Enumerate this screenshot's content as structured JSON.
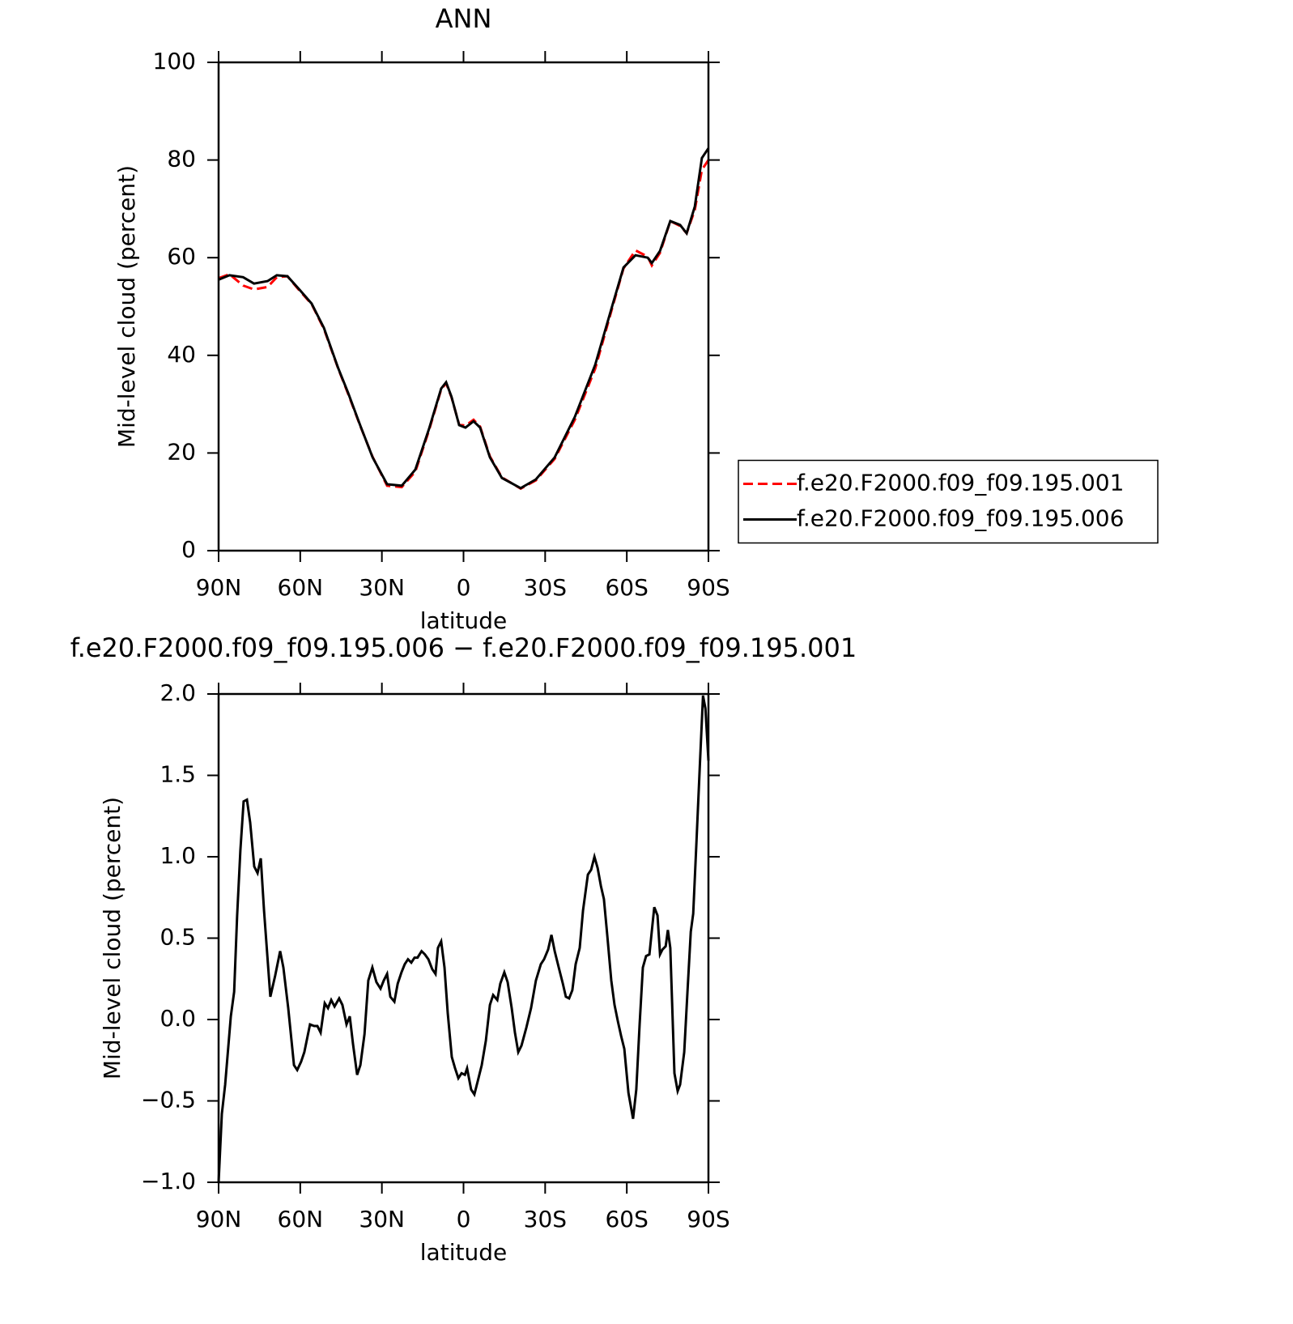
{
  "chart_data": [
    {
      "type": "line",
      "title": "ANN",
      "xlabel": "latitude",
      "ylabel": "Mid-level cloud (percent)",
      "xlim": [
        90,
        -90
      ],
      "ylim": [
        0,
        100
      ],
      "xticks": [
        {
          "value": 90,
          "label": "90N"
        },
        {
          "value": 60,
          "label": "60N"
        },
        {
          "value": 30,
          "label": "30N"
        },
        0,
        {
          "value": -30,
          "label": "30S"
        },
        {
          "value": -60,
          "label": "60S"
        },
        {
          "value": -90,
          "label": "90S"
        }
      ],
      "yticks": [
        0,
        20,
        40,
        60,
        80,
        100
      ],
      "legend": "right",
      "x": [
        90,
        86,
        81,
        77,
        72,
        68.6,
        64.7,
        60.2,
        55.8,
        51.3,
        46,
        42.4,
        38,
        33.4,
        28.1,
        22.7,
        17.7,
        12.7,
        8.2,
        6.4,
        4.4,
        1.6,
        -0.7,
        -3.7,
        -6.1,
        -9.7,
        -14.1,
        -21,
        -26.6,
        -33.5,
        -40.9,
        -48.4,
        -54.9,
        -58.8,
        -63.2,
        -67.7,
        -69.2,
        -72.2,
        -76,
        -79.6,
        -82,
        -85,
        -87.6,
        -90
      ],
      "series": [
        {
          "name": "f.e20.F2000.f09_f09.195.001",
          "color": "#ff0000",
          "linestyle": "dashed",
          "values": [
            55.8,
            56.6,
            54.3,
            53.5,
            54,
            56,
            56.2,
            53.2,
            50.5,
            45.4,
            37.2,
            32.1,
            25.6,
            19.2,
            13.3,
            13,
            16.2,
            24.6,
            33,
            34.3,
            31.4,
            25.8,
            25.6,
            26.8,
            25.4,
            19.3,
            15,
            12.7,
            14.4,
            18.8,
            26.8,
            37.3,
            50.2,
            57.8,
            61.5,
            60.2,
            58.4,
            61,
            67.5,
            66.5,
            65,
            69.8,
            78,
            80
          ]
        },
        {
          "name": "f.e20.F2000.f09_f09.195.006",
          "color": "#000000",
          "linestyle": "solid",
          "values": [
            55.5,
            56.4,
            56,
            54.7,
            55.2,
            56.4,
            56.2,
            53.4,
            50.6,
            45.6,
            37.3,
            32.3,
            25.7,
            19.1,
            13.6,
            13.3,
            16.6,
            24.9,
            33.2,
            34.5,
            31.5,
            25.7,
            25.2,
            26.5,
            25.2,
            19.1,
            14.9,
            12.8,
            14.6,
            19.1,
            27.4,
            38.1,
            50.6,
            58,
            60.5,
            60,
            58.9,
            61.4,
            67.5,
            66.7,
            65,
            70.5,
            80.4,
            82.4
          ]
        }
      ]
    },
    {
      "type": "line",
      "title": "f.e20.F2000.f09_f09.195.006 − f.e20.F2000.f09_f09.195.001",
      "xlabel": "latitude",
      "ylabel": "Mid-level cloud (percent)",
      "xlim": [
        90,
        -90
      ],
      "ylim": [
        -1,
        2
      ],
      "xticks": [
        {
          "value": 90,
          "label": "90N"
        },
        {
          "value": 60,
          "label": "60N"
        },
        {
          "value": 30,
          "label": "30N"
        },
        0,
        {
          "value": -30,
          "label": "30S"
        },
        {
          "value": -60,
          "label": "60S"
        },
        {
          "value": -90,
          "label": "90S"
        }
      ],
      "yticks": [
        {
          "value": -1,
          "label": "−1.0"
        },
        {
          "value": -0.5,
          "label": "−0.5"
        },
        {
          "value": 0,
          "label": "0.0"
        },
        {
          "value": 0.5,
          "label": "0.5"
        },
        {
          "value": 1,
          "label": "1.0"
        },
        {
          "value": 1.5,
          "label": "1.5"
        },
        {
          "value": 2,
          "label": "2.0"
        }
      ],
      "x": [
        90,
        88.8,
        87.6,
        85.5,
        84.3,
        83.2,
        82,
        80.8,
        79.6,
        78.4,
        76.9,
        75.7,
        74.5,
        73.3,
        71,
        69.2,
        67.4,
        66.2,
        64.4,
        62.3,
        61.1,
        59.7,
        58.5,
        56.4,
        54.9,
        53.7,
        52.5,
        51,
        49.8,
        48.6,
        47.4,
        45.7,
        44.5,
        43,
        41.8,
        40.6,
        39.1,
        37.9,
        36.4,
        35,
        33.5,
        32,
        30.5,
        29.3,
        28.1,
        26.9,
        25.4,
        24.2,
        22.8,
        21.6,
        20.4,
        19.2,
        18,
        16.9,
        15.4,
        14.2,
        12.9,
        11.5,
        10.3,
        9.4,
        8.2,
        7,
        5.8,
        4.3,
        3.1,
        1.9,
        0.7,
        -0.5,
        -1.3,
        -2.8,
        -4,
        -5.2,
        -6.7,
        -8.2,
        -9.7,
        -10.9,
        -12.4,
        -13.5,
        -15,
        -16.2,
        -17.7,
        -18.9,
        -20.1,
        -21.3,
        -23.1,
        -24.8,
        -26.6,
        -28.4,
        -29.6,
        -31.1,
        -32.3,
        -33.5,
        -35,
        -36.5,
        -37.6,
        -38.8,
        -40,
        -41.2,
        -42.7,
        -43.9,
        -45.7,
        -46.9,
        -48.1,
        -49.3,
        -50.5,
        -51.6,
        -52.8,
        -54.3,
        -55.5,
        -56.7,
        -57.9,
        -59.1,
        -60.6,
        -62.3,
        -63.5,
        -64.7,
        -65.9,
        -67.1,
        -68.3,
        -70.1,
        -71.3,
        -72.2,
        -73.1,
        -74.3,
        -75.1,
        -76,
        -77.5,
        -78.7,
        -79.6,
        -81.1,
        -82.3,
        -83.5,
        -84.4,
        -85.6,
        -86.8,
        -88,
        -88.9,
        -90
      ],
      "series": [
        {
          "color": "#000000",
          "linestyle": "solid",
          "values": [
            -1.0,
            -0.58,
            -0.4,
            0.02,
            0.17,
            0.64,
            1.04,
            1.34,
            1.35,
            1.21,
            0.94,
            0.9,
            0.99,
            0.67,
            0.14,
            0.27,
            0.42,
            0.32,
            0.07,
            -0.28,
            -0.31,
            -0.26,
            -0.2,
            -0.03,
            -0.04,
            -0.04,
            -0.08,
            0.1,
            0.07,
            0.12,
            0.08,
            0.13,
            0.09,
            -0.03,
            0.02,
            -0.15,
            -0.34,
            -0.28,
            -0.09,
            0.24,
            0.32,
            0.23,
            0.19,
            0.24,
            0.28,
            0.14,
            0.11,
            0.22,
            0.29,
            0.34,
            0.37,
            0.35,
            0.38,
            0.38,
            0.42,
            0.4,
            0.37,
            0.31,
            0.28,
            0.44,
            0.48,
            0.32,
            0.04,
            -0.23,
            -0.3,
            -0.36,
            -0.33,
            -0.34,
            -0.3,
            -0.43,
            -0.46,
            -0.38,
            -0.28,
            -0.13,
            0.09,
            0.15,
            0.12,
            0.22,
            0.29,
            0.23,
            0.07,
            -0.08,
            -0.2,
            -0.16,
            -0.05,
            0.07,
            0.24,
            0.34,
            0.37,
            0.43,
            0.52,
            0.42,
            0.32,
            0.22,
            0.14,
            0.13,
            0.18,
            0.34,
            0.44,
            0.67,
            0.89,
            0.92,
            1.0,
            0.93,
            0.82,
            0.74,
            0.52,
            0.24,
            0.09,
            -0.01,
            -0.1,
            -0.18,
            -0.45,
            -0.61,
            -0.43,
            -0.03,
            0.32,
            0.39,
            0.4,
            0.69,
            0.64,
            0.4,
            0.43,
            0.45,
            0.55,
            0.44,
            -0.33,
            -0.44,
            -0.4,
            -0.2,
            0.17,
            0.54,
            0.65,
            1.09,
            1.54,
            1.99,
            1.91,
            1.59
          ]
        }
      ]
    }
  ]
}
